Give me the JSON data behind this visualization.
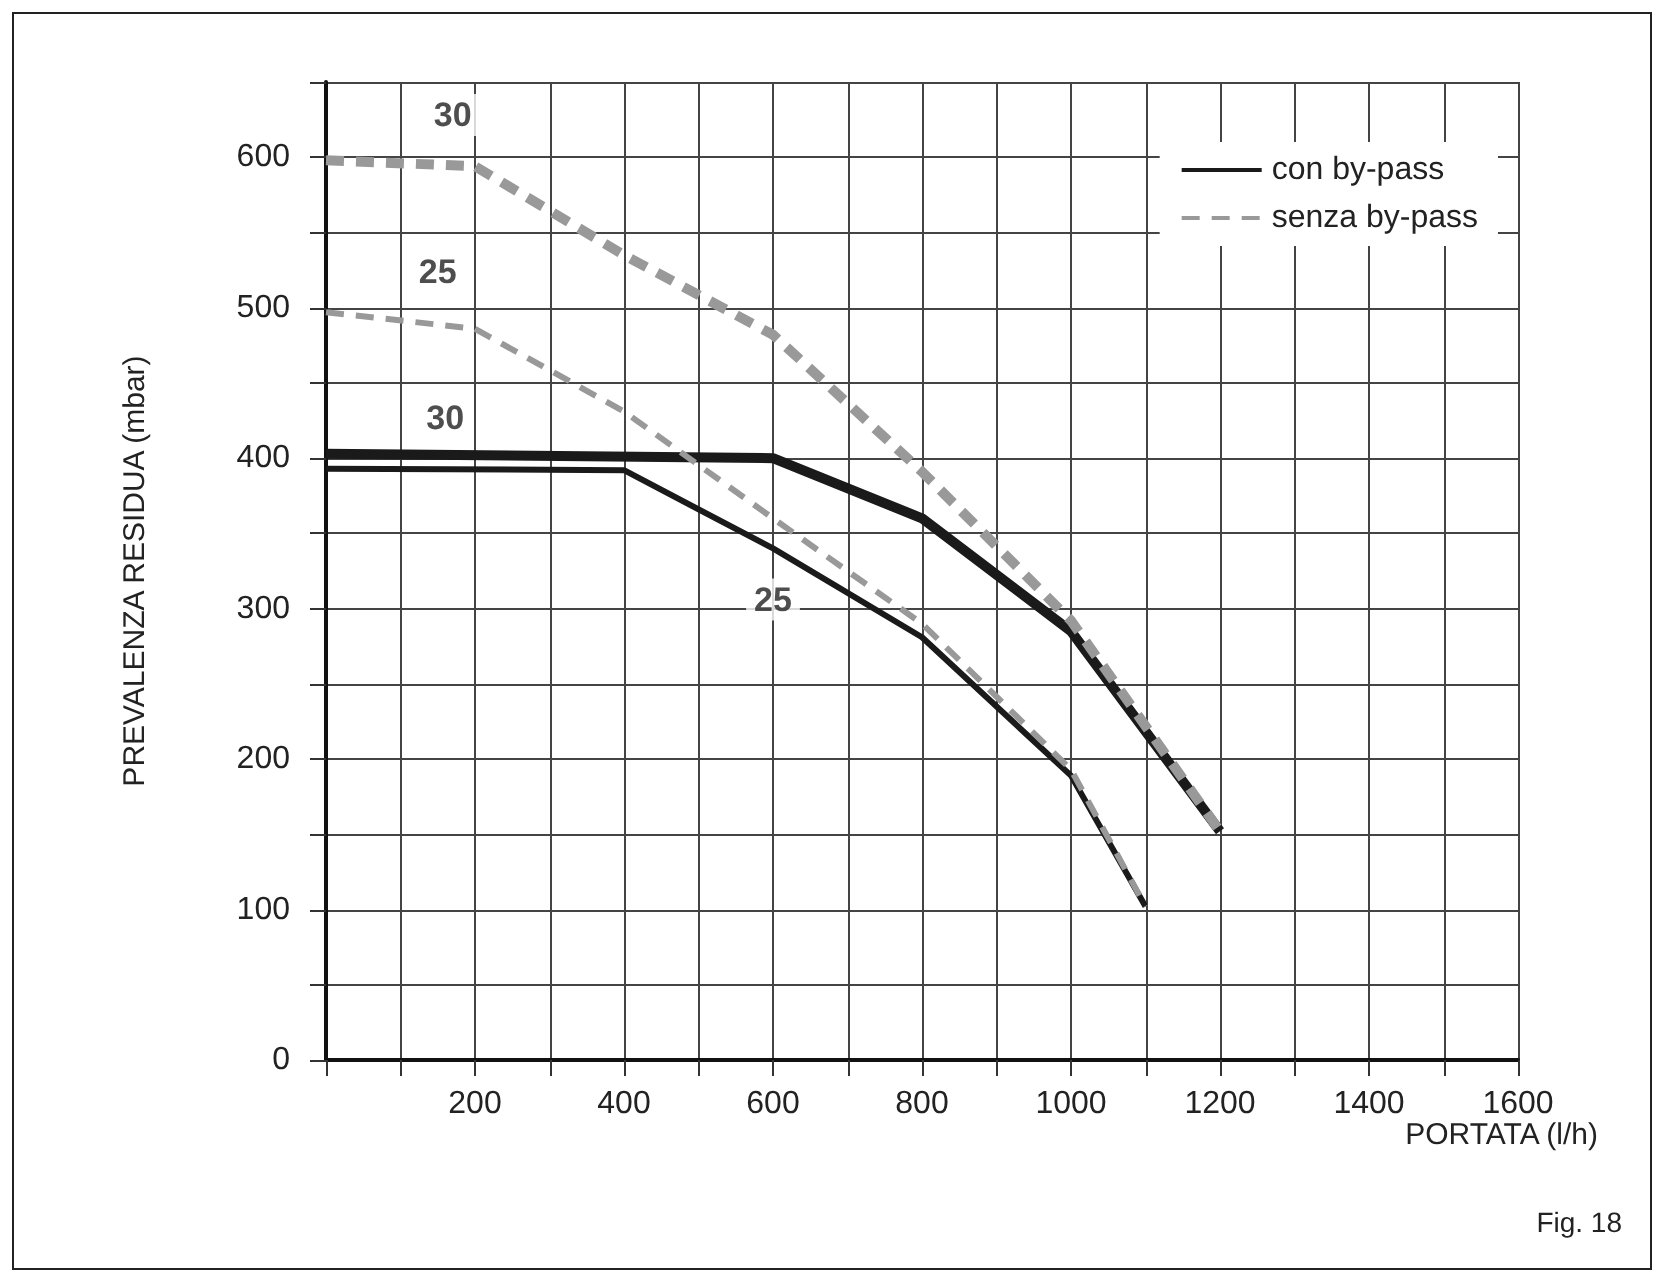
{
  "chart_data": {
    "type": "line",
    "xlabel": "PORTATA (l/h)",
    "ylabel": "PREVALENZA RESIDUA (mbar)",
    "xlim": [
      0,
      1600
    ],
    "ylim": [
      0,
      650
    ],
    "xticks": [
      {
        "value": 0,
        "label": null
      },
      {
        "value": 100,
        "label": null
      },
      200,
      {
        "value": 300,
        "label": null
      },
      400,
      {
        "value": 500,
        "label": null
      },
      600,
      {
        "value": 700,
        "label": null
      },
      800,
      {
        "value": 900,
        "label": null
      },
      1000,
      {
        "value": 1100,
        "label": null
      },
      1200,
      {
        "value": 1300,
        "label": null
      },
      1400,
      {
        "value": 1500,
        "label": null
      },
      1600
    ],
    "yticks": [
      0,
      {
        "value": 50,
        "label": null
      },
      100,
      {
        "value": 150,
        "label": null
      },
      200,
      {
        "value": 250,
        "label": null
      },
      300,
      {
        "value": 350,
        "label": null
      },
      400,
      {
        "value": 450,
        "label": null
      },
      500,
      {
        "value": 550,
        "label": null
      },
      600,
      {
        "value": 650,
        "label": null
      }
    ],
    "grid": true,
    "legend": "top right",
    "marker": "none",
    "series": [
      {
        "name": "con by-pass",
        "color": "#1a1a1a",
        "line_style": "solid",
        "x": [
          0,
          600,
          800,
          1000,
          1200
        ],
        "values": [
          403,
          400,
          360,
          285,
          152
        ]
      },
      {
        "color": "#1a1a1a",
        "line_style": "solid",
        "x": [
          0,
          400,
          600,
          800,
          1000,
          1100
        ],
        "values": [
          393,
          392,
          340,
          281,
          189,
          102
        ]
      },
      {
        "name": "senza by-pass",
        "color": "#999999",
        "line_style": "dashed",
        "x": [
          0,
          200,
          400,
          600,
          800,
          1000,
          1200
        ],
        "values": [
          598,
          594,
          535,
          482,
          391,
          292,
          152
        ]
      },
      {
        "color": "#999999",
        "line_style": "dashed",
        "x": [
          0,
          200,
          400,
          600,
          800,
          1000,
          1100
        ],
        "values": [
          497,
          486,
          431,
          360,
          290,
          193,
          102
        ]
      }
    ],
    "annotations": [
      {
        "text": "30",
        "x": 170,
        "y": 628
      },
      {
        "text": "25",
        "x": 150,
        "y": 524
      },
      {
        "text": "30",
        "x": 160,
        "y": 427
      },
      {
        "text": "25",
        "x": 600,
        "y": 306
      },
      "Fig. 18"
    ]
  }
}
